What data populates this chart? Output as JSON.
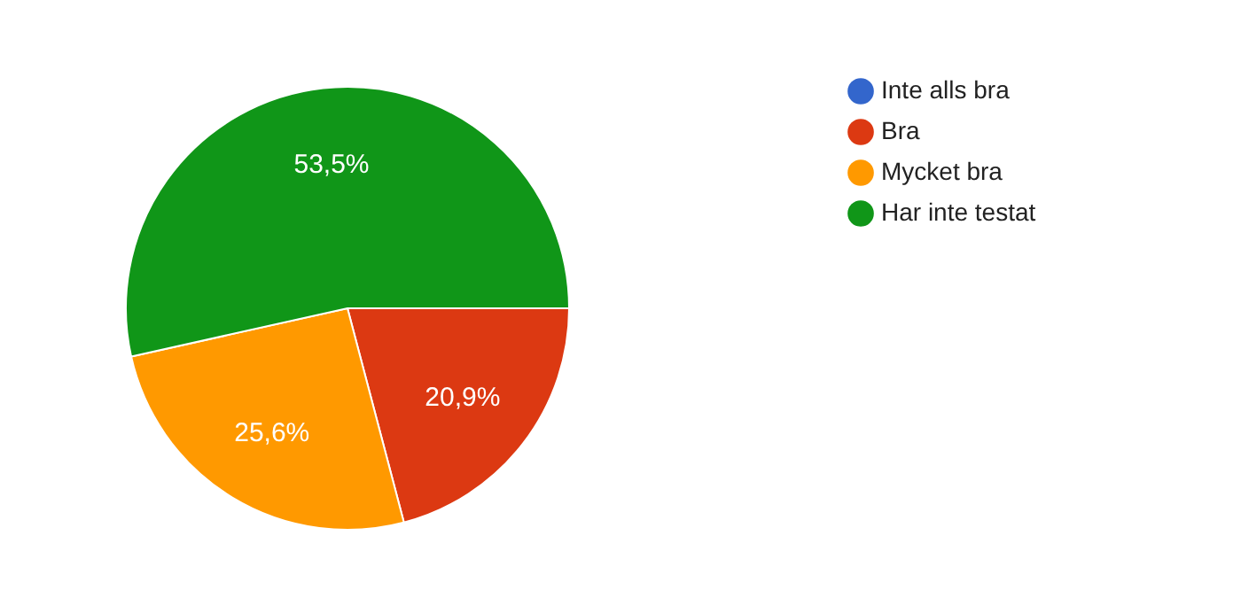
{
  "chart_data": {
    "type": "pie",
    "categories": [
      "Inte alls bra",
      "Bra",
      "Mycket bra",
      "Har inte testat"
    ],
    "values": [
      0,
      20.9,
      25.6,
      53.5
    ],
    "colors": [
      "#3366cc",
      "#dc3912",
      "#ff9900",
      "#109618"
    ],
    "value_labels": [
      null,
      "20,9%",
      "25,6%",
      "53,5%"
    ],
    "legend": "right"
  }
}
